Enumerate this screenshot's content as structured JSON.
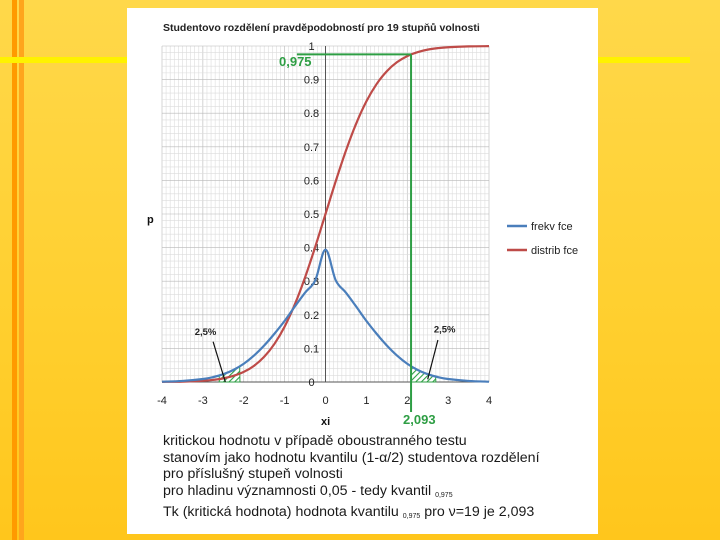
{
  "slide": {
    "colors": {
      "background": "#ffd23a",
      "stripe_orange": "#ff9a00",
      "stripe_yellow": "#fff200"
    }
  },
  "chart_data": {
    "type": "line",
    "title": "Studentovo rozdělení pravděpodobností pro 19 stupňů volnosti",
    "xlabel": "xi",
    "ylabel": "p",
    "xlim": [
      -4,
      4
    ],
    "ylim": [
      0,
      1
    ],
    "x_ticks": [
      "-4",
      "-3",
      "-2",
      "-1",
      "0",
      "1",
      "2",
      "3",
      "4"
    ],
    "y_ticks": [
      "0",
      "0.1",
      "0.2",
      "0.3",
      "0.4",
      "0.5",
      "0.6",
      "0.7",
      "0.8",
      "0.9",
      "1"
    ],
    "grid": true,
    "legend_position": "right",
    "degrees_of_freedom": 19,
    "series": [
      {
        "name": "frekv fce",
        "color": "#4a7ebb",
        "x": [
          -4,
          -3.5,
          -3,
          -2.75,
          -2.5,
          -2.25,
          -2,
          -1.75,
          -1.5,
          -1.25,
          -1,
          -0.75,
          -0.5,
          -0.25,
          0,
          0.25,
          0.5,
          0.75,
          1,
          1.25,
          1.5,
          1.75,
          2,
          2.25,
          2.5,
          2.75,
          3,
          3.5,
          4
        ],
        "values": [
          0.001,
          0.0032,
          0.0089,
          0.0145,
          0.0232,
          0.0361,
          0.0543,
          0.0786,
          0.1086,
          0.1436,
          0.1819,
          0.2247,
          0.2659,
          0.3027,
          0.394,
          0.3027,
          0.2659,
          0.2247,
          0.1819,
          0.1436,
          0.1086,
          0.0786,
          0.0543,
          0.0361,
          0.0232,
          0.0145,
          0.0089,
          0.0032,
          0.001
        ]
      },
      {
        "name": "distrib fce",
        "color": "#be4b48",
        "x": [
          -4,
          -3.5,
          -3,
          -2.75,
          -2.5,
          -2.25,
          -2,
          -1.75,
          -1.5,
          -1.25,
          -1,
          -0.75,
          -0.5,
          -0.25,
          0,
          0.25,
          0.5,
          0.75,
          1,
          1.25,
          1.5,
          1.75,
          2,
          2.25,
          2.5,
          2.75,
          3,
          3.5,
          4
        ],
        "values": [
          0.0004,
          0.0012,
          0.0037,
          0.0064,
          0.0108,
          0.0183,
          0.03,
          0.0481,
          0.075,
          0.1133,
          0.1649,
          0.2311,
          0.3114,
          0.4026,
          0.5,
          0.5974,
          0.6886,
          0.7689,
          0.8351,
          0.8867,
          0.925,
          0.9519,
          0.97,
          0.9817,
          0.9892,
          0.9936,
          0.9963,
          0.9988,
          0.9996
        ]
      }
    ],
    "annotations": {
      "critical_x_label": "2,093",
      "critical_x": 2.093,
      "critical_p_label": "0,975",
      "critical_p": 0.975,
      "left_tail_label": "2,5%",
      "right_tail_label": "2,5%",
      "highlight_color": "#2e9e44"
    }
  },
  "caption": {
    "line1": "kritickou hodnotu v případě oboustranného testu",
    "line2": "stanovím jako hodnotu kvantilu (1-",
    "line2_alpha": "α",
    "line2_end": "/2) studentova rozdělení",
    "line3": "pro příslušný stupeň volnosti",
    "line4": "pro hladinu významnosti 0,05 - tedy kvantil ",
    "line4_sub": "0,975",
    "line5": "Tk (kritická hodnota) hodnota kvantilu ",
    "line5_sub": "0,975",
    "line5_mid": " pro ",
    "line5_nu": "ν",
    "line5_end": "=19 je 2,093"
  }
}
